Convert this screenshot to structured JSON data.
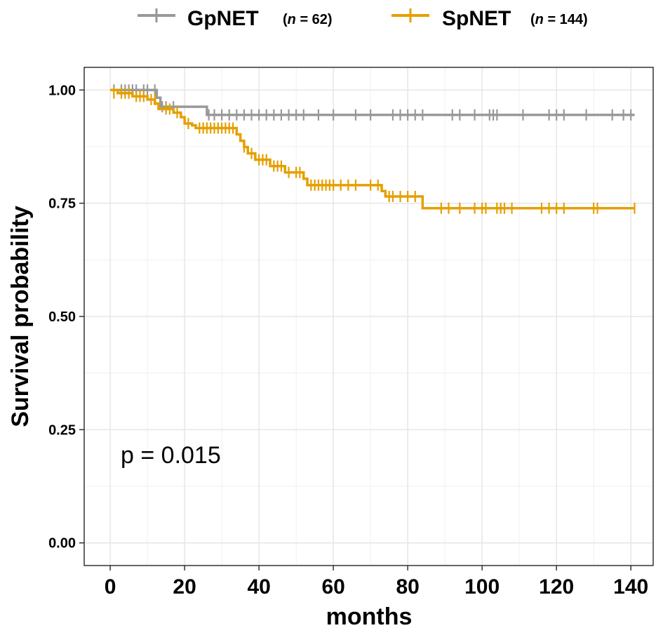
{
  "chart_data": {
    "type": "line",
    "subtype": "kaplan-meier",
    "title": "",
    "xlabel": "months",
    "ylabel": "Survival probability",
    "xlim": [
      -7,
      146
    ],
    "ylim": [
      -0.05,
      1.05
    ],
    "x_ticks": [
      0,
      20,
      40,
      60,
      80,
      100,
      120,
      140
    ],
    "x_tick_labels": [
      "0",
      "20",
      "40",
      "60",
      "80",
      "100",
      "120",
      "140"
    ],
    "y_ticks": [
      0,
      0.25,
      0.5,
      0.75,
      1.0
    ],
    "y_tick_labels": [
      "0.00",
      "0.25",
      "0.50",
      "0.75",
      "1.00"
    ],
    "grid": true,
    "legend_position": "top",
    "annotation": "p = 0.015",
    "series": [
      {
        "name": "GpNET",
        "n_label": "(n = 62)",
        "n_prefix": "(",
        "n_italic": "n",
        "n_suffix": " = 62)",
        "color": "#999999",
        "steps": [
          [
            0,
            1.0
          ],
          [
            12.5,
            0.983
          ],
          [
            13.5,
            0.963
          ],
          [
            26,
            0.945
          ],
          [
            141,
            0.945
          ]
        ],
        "censors": [
          [
            1,
            1.0
          ],
          [
            3,
            1.0
          ],
          [
            4,
            1.0
          ],
          [
            5,
            1.0
          ],
          [
            6,
            1.0
          ],
          [
            7,
            1.0
          ],
          [
            9,
            1.0
          ],
          [
            10,
            1.0
          ],
          [
            12,
            1.0
          ],
          [
            14,
            0.963
          ],
          [
            15,
            0.963
          ],
          [
            17,
            0.963
          ],
          [
            26.5,
            0.945
          ],
          [
            28,
            0.945
          ],
          [
            30,
            0.945
          ],
          [
            32,
            0.945
          ],
          [
            34,
            0.945
          ],
          [
            36,
            0.945
          ],
          [
            38,
            0.945
          ],
          [
            40,
            0.945
          ],
          [
            42,
            0.945
          ],
          [
            44,
            0.945
          ],
          [
            46,
            0.945
          ],
          [
            48,
            0.945
          ],
          [
            50,
            0.945
          ],
          [
            52,
            0.945
          ],
          [
            56,
            0.945
          ],
          [
            60,
            0.945
          ],
          [
            66,
            0.945
          ],
          [
            70,
            0.945
          ],
          [
            76,
            0.945
          ],
          [
            78,
            0.945
          ],
          [
            80,
            0.945
          ],
          [
            82,
            0.945
          ],
          [
            84,
            0.945
          ],
          [
            92,
            0.945
          ],
          [
            94,
            0.945
          ],
          [
            98,
            0.945
          ],
          [
            102,
            0.945
          ],
          [
            103,
            0.945
          ],
          [
            104,
            0.945
          ],
          [
            111,
            0.945
          ],
          [
            118,
            0.945
          ],
          [
            120,
            0.945
          ],
          [
            122,
            0.945
          ],
          [
            128,
            0.945
          ],
          [
            135,
            0.945
          ],
          [
            138,
            0.945
          ],
          [
            140,
            0.945
          ]
        ]
      },
      {
        "name": "SpNET",
        "n_label": "(n = 144)",
        "n_prefix": "(",
        "n_italic": "n",
        "n_suffix": " = 144)",
        "color": "#E69F00",
        "steps": [
          [
            0,
            1.0
          ],
          [
            2,
            0.993
          ],
          [
            6,
            0.986
          ],
          [
            10,
            0.979
          ],
          [
            12,
            0.97
          ],
          [
            13,
            0.958
          ],
          [
            17,
            0.95
          ],
          [
            19,
            0.94
          ],
          [
            20,
            0.926
          ],
          [
            22,
            0.922
          ],
          [
            23,
            0.916
          ],
          [
            34,
            0.902
          ],
          [
            35,
            0.888
          ],
          [
            36,
            0.874
          ],
          [
            37,
            0.86
          ],
          [
            39,
            0.846
          ],
          [
            43,
            0.832
          ],
          [
            47,
            0.818
          ],
          [
            52,
            0.804
          ],
          [
            53,
            0.79
          ],
          [
            73,
            0.777
          ],
          [
            74,
            0.765
          ],
          [
            84,
            0.739
          ],
          [
            141,
            0.739
          ]
        ],
        "censors": [
          [
            1,
            0.993
          ],
          [
            3,
            0.993
          ],
          [
            4,
            0.993
          ],
          [
            5,
            0.993
          ],
          [
            7,
            0.986
          ],
          [
            8,
            0.986
          ],
          [
            9,
            0.986
          ],
          [
            11,
            0.979
          ],
          [
            12,
            0.979
          ],
          [
            15,
            0.958
          ],
          [
            16,
            0.958
          ],
          [
            18,
            0.95
          ],
          [
            21,
            0.926
          ],
          [
            24,
            0.916
          ],
          [
            25,
            0.916
          ],
          [
            26,
            0.916
          ],
          [
            27,
            0.916
          ],
          [
            28,
            0.916
          ],
          [
            29,
            0.916
          ],
          [
            30,
            0.916
          ],
          [
            31,
            0.916
          ],
          [
            32,
            0.916
          ],
          [
            33,
            0.916
          ],
          [
            36,
            0.874
          ],
          [
            38,
            0.86
          ],
          [
            40,
            0.846
          ],
          [
            41,
            0.846
          ],
          [
            42,
            0.846
          ],
          [
            44,
            0.832
          ],
          [
            45,
            0.832
          ],
          [
            46,
            0.832
          ],
          [
            48,
            0.818
          ],
          [
            50,
            0.818
          ],
          [
            51,
            0.818
          ],
          [
            54,
            0.79
          ],
          [
            55,
            0.79
          ],
          [
            56,
            0.79
          ],
          [
            57,
            0.79
          ],
          [
            58,
            0.79
          ],
          [
            59,
            0.79
          ],
          [
            60,
            0.79
          ],
          [
            62,
            0.79
          ],
          [
            64,
            0.79
          ],
          [
            66,
            0.79
          ],
          [
            70,
            0.79
          ],
          [
            72,
            0.79
          ],
          [
            75,
            0.765
          ],
          [
            76,
            0.765
          ],
          [
            78,
            0.765
          ],
          [
            80,
            0.765
          ],
          [
            82,
            0.765
          ],
          [
            89,
            0.739
          ],
          [
            91,
            0.739
          ],
          [
            94,
            0.739
          ],
          [
            98,
            0.739
          ],
          [
            100,
            0.739
          ],
          [
            101,
            0.739
          ],
          [
            104,
            0.739
          ],
          [
            105,
            0.739
          ],
          [
            106,
            0.739
          ],
          [
            108,
            0.739
          ],
          [
            116,
            0.739
          ],
          [
            118,
            0.739
          ],
          [
            120,
            0.739
          ],
          [
            122,
            0.739
          ],
          [
            130,
            0.739
          ],
          [
            131,
            0.739
          ],
          [
            141,
            0.739
          ]
        ]
      }
    ]
  }
}
